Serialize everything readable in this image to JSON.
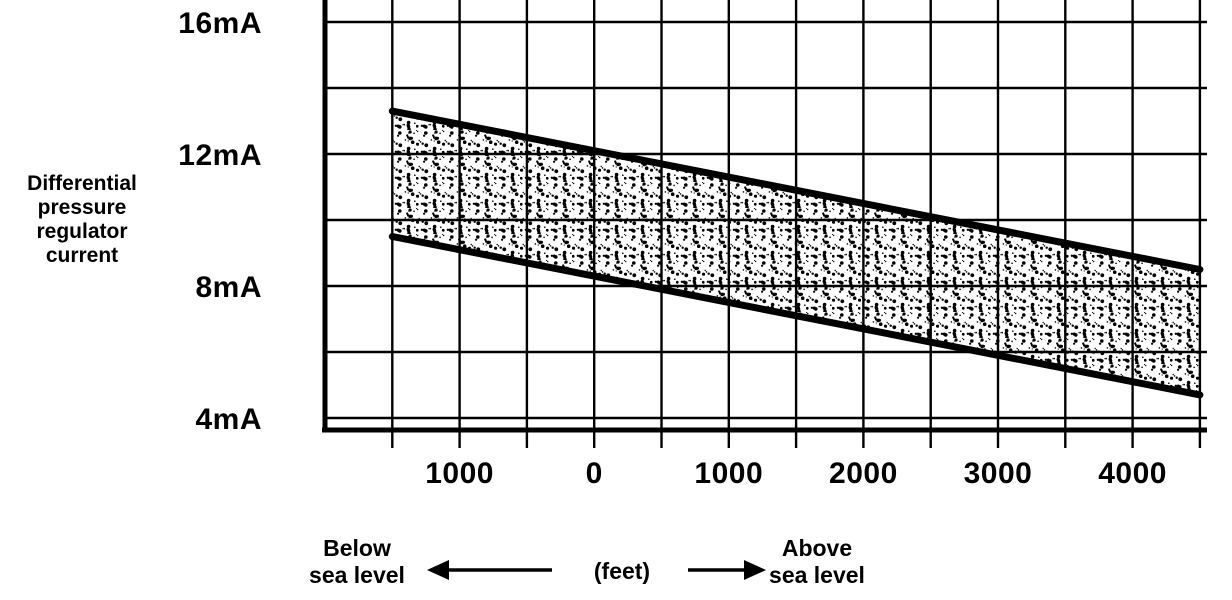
{
  "figure": {
    "ylabel_lines": [
      "Differential",
      "pressure",
      "regulator",
      "current"
    ],
    "below_label_line1": "Below",
    "below_label_line2": "sea level",
    "feet_label": "(feet)",
    "above_label_line1": "Above",
    "above_label_line2": "sea level"
  },
  "chart_data": {
    "type": "area",
    "ylabel": "Differential pressure regulator current",
    "xlabel": "(feet)",
    "x_direction_labels": {
      "negative": "Below sea level",
      "positive": "Above sea level"
    },
    "xlim": [
      -2000,
      4500
    ],
    "ylim": [
      4,
      16
    ],
    "x_grid_step_feet": 500,
    "y_grid_step_mA": 2,
    "grid": true,
    "x_ticks": [
      {
        "feet": -1000,
        "label": "1000"
      },
      {
        "feet": 0,
        "label": "0"
      },
      {
        "feet": 1000,
        "label": "1000"
      },
      {
        "feet": 2000,
        "label": "2000"
      },
      {
        "feet": 3000,
        "label": "3000"
      },
      {
        "feet": 4000,
        "label": "4000"
      }
    ],
    "y_ticks": [
      {
        "mA": 16,
        "label": "16mA"
      },
      {
        "mA": 12,
        "label": "12mA"
      },
      {
        "mA": 8,
        "label": "8mA"
      },
      {
        "mA": 4,
        "label": "4mA"
      }
    ],
    "band": {
      "description": "Acceptable differential pressure regulator current range vs altitude (stippled tolerance band)",
      "x_feet": [
        -1500,
        4500
      ],
      "upper_mA": [
        13.3,
        8.5
      ],
      "lower_mA": [
        9.5,
        4.7
      ],
      "edge_color": "#000000"
    }
  }
}
